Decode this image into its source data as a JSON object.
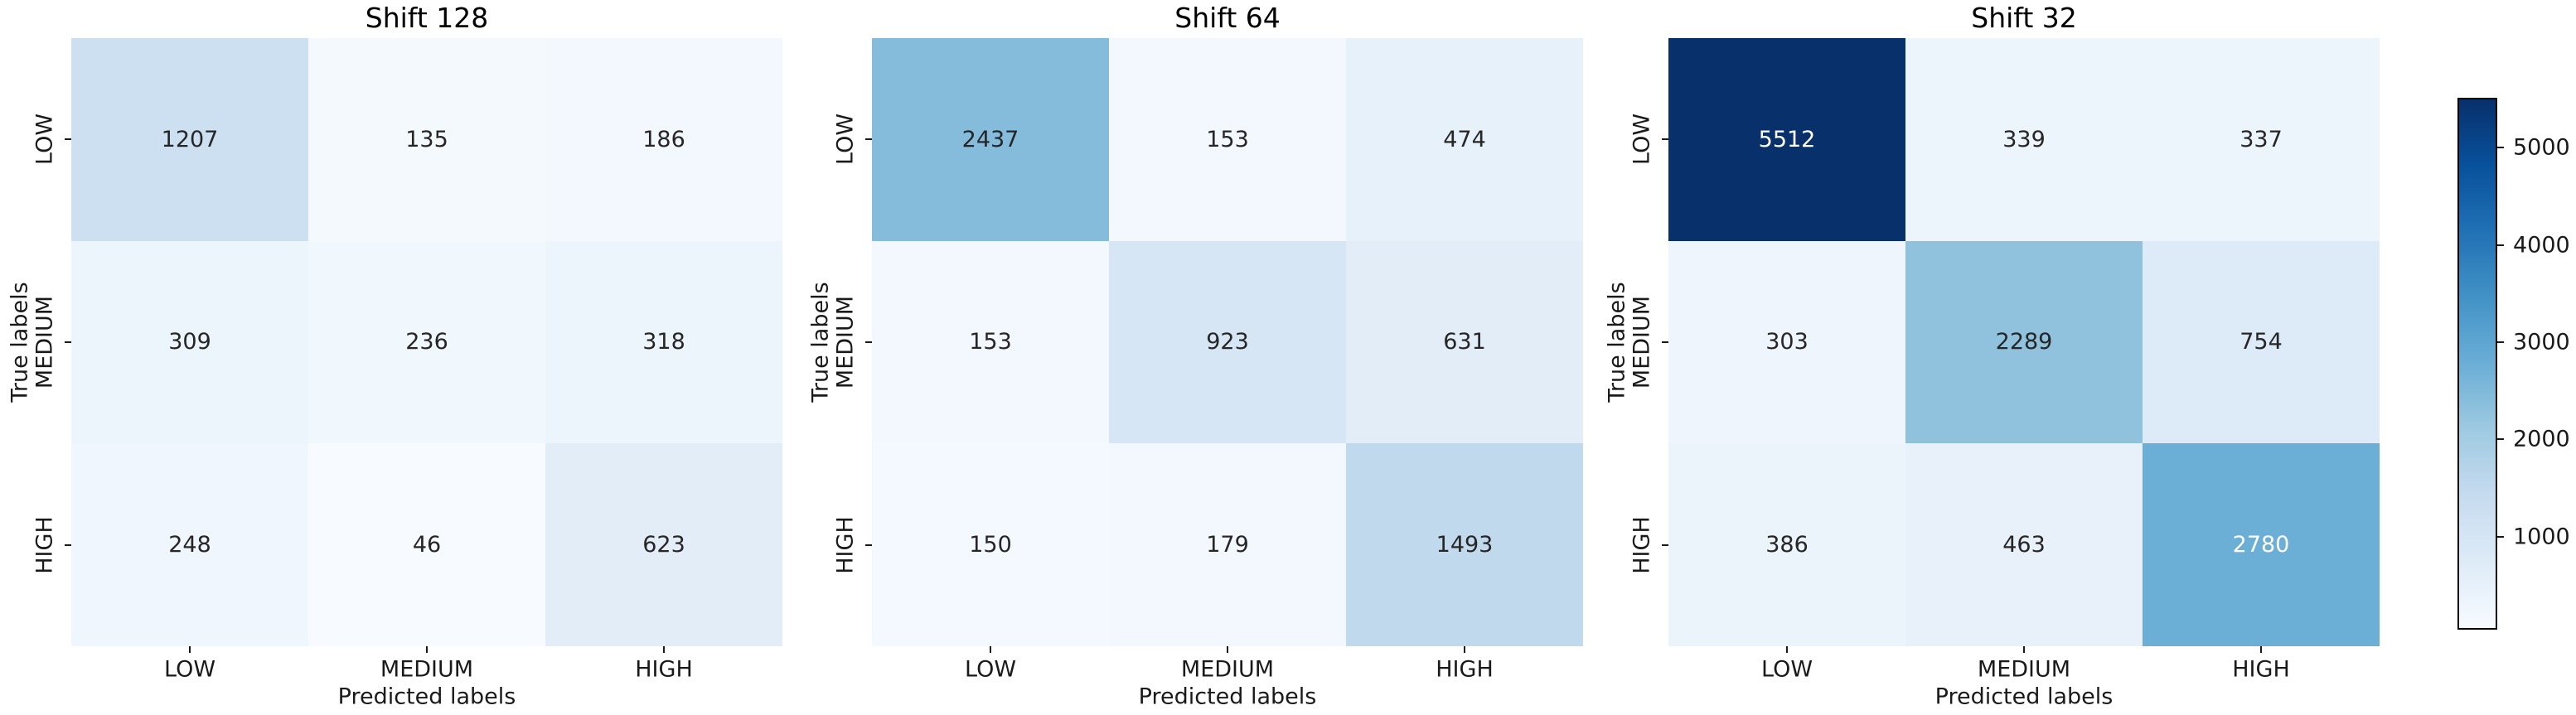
{
  "figure": {
    "background_color": "#ffffff",
    "description": "Three confusion-matrix heatmaps with shared Blues colorbar"
  },
  "chart_data": {
    "type": "heatmap",
    "subplots": [
      {
        "title": "Shift 128",
        "matrix": [
          [
            1207,
            135,
            186
          ],
          [
            309,
            236,
            318
          ],
          [
            248,
            46,
            623
          ]
        ]
      },
      {
        "title": "Shift 64",
        "matrix": [
          [
            2437,
            153,
            474
          ],
          [
            153,
            923,
            631
          ],
          [
            150,
            179,
            1493
          ]
        ]
      },
      {
        "title": "Shift 32",
        "matrix": [
          [
            5512,
            339,
            337
          ],
          [
            303,
            2289,
            754
          ],
          [
            386,
            463,
            2780
          ]
        ]
      }
    ],
    "row_labels": [
      "LOW",
      "MEDIUM",
      "HIGH"
    ],
    "col_labels": [
      "LOW",
      "MEDIUM",
      "HIGH"
    ],
    "xlabel": "Predicted labels",
    "ylabel": "True labels",
    "grid": false,
    "cell_borders": false,
    "colormap": "Blues",
    "colormap_anchors": [
      "#f7fbff",
      "#deebf7",
      "#c6dbef",
      "#9ecae1",
      "#6baed6",
      "#4292c6",
      "#2171b5",
      "#08519c",
      "#08306b"
    ],
    "vmin": 46,
    "vmax": 5512,
    "colorbar": {
      "position": "right",
      "tick_values": [
        1000,
        2000,
        3000,
        4000,
        5000
      ],
      "tick_labels": [
        "1000",
        "2000",
        "3000",
        "4000",
        "5000"
      ]
    },
    "annotation_dark_text_color": "#262626",
    "annotation_light_text_color": "#ffffff"
  }
}
